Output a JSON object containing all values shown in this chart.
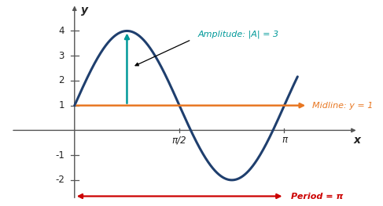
{
  "title": "",
  "xlabel": "x",
  "ylabel": "y",
  "curve_color": "#1f3f6e",
  "curve_linewidth": 2.2,
  "midline_color": "#e87722",
  "midline_y": 1,
  "amplitude_color": "#009999",
  "amplitude_value": 3,
  "period_color": "#cc0000",
  "annotation_amplitude": "Amplitude: |A| = 3",
  "annotation_midline": "Midline: y = 1",
  "annotation_period": "Period = π",
  "axis_color": "#555555",
  "xlim": [
    -1.1,
    4.3
  ],
  "ylim": [
    -3.0,
    5.2
  ],
  "xticks": [
    1.5707963267948966,
    3.141592653589793
  ],
  "xtick_labels": [
    "π/2",
    "π"
  ],
  "yticks": [
    -2,
    -1,
    1,
    2,
    3,
    4
  ],
  "background_color": "#ffffff",
  "x_start": 0.0,
  "x_end": 3.34
}
